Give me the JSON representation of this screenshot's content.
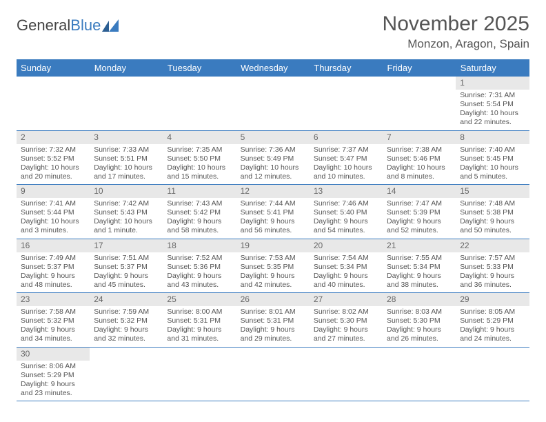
{
  "logo": {
    "text_a": "General",
    "text_b": "Blue"
  },
  "title": "November 2025",
  "location": "Monzon, Aragon, Spain",
  "colors": {
    "header_bg": "#3a7bbf",
    "header_text": "#ffffff",
    "day_bar_bg": "#e8e8e8",
    "border": "#3a7bbf",
    "text": "#555555"
  },
  "weekdays": [
    "Sunday",
    "Monday",
    "Tuesday",
    "Wednesday",
    "Thursday",
    "Friday",
    "Saturday"
  ],
  "weeks": [
    [
      {
        "n": "",
        "sr": "",
        "ss": "",
        "dl": ""
      },
      {
        "n": "",
        "sr": "",
        "ss": "",
        "dl": ""
      },
      {
        "n": "",
        "sr": "",
        "ss": "",
        "dl": ""
      },
      {
        "n": "",
        "sr": "",
        "ss": "",
        "dl": ""
      },
      {
        "n": "",
        "sr": "",
        "ss": "",
        "dl": ""
      },
      {
        "n": "",
        "sr": "",
        "ss": "",
        "dl": ""
      },
      {
        "n": "1",
        "sr": "Sunrise: 7:31 AM",
        "ss": "Sunset: 5:54 PM",
        "dl": "Daylight: 10 hours and 22 minutes."
      }
    ],
    [
      {
        "n": "2",
        "sr": "Sunrise: 7:32 AM",
        "ss": "Sunset: 5:52 PM",
        "dl": "Daylight: 10 hours and 20 minutes."
      },
      {
        "n": "3",
        "sr": "Sunrise: 7:33 AM",
        "ss": "Sunset: 5:51 PM",
        "dl": "Daylight: 10 hours and 17 minutes."
      },
      {
        "n": "4",
        "sr": "Sunrise: 7:35 AM",
        "ss": "Sunset: 5:50 PM",
        "dl": "Daylight: 10 hours and 15 minutes."
      },
      {
        "n": "5",
        "sr": "Sunrise: 7:36 AM",
        "ss": "Sunset: 5:49 PM",
        "dl": "Daylight: 10 hours and 12 minutes."
      },
      {
        "n": "6",
        "sr": "Sunrise: 7:37 AM",
        "ss": "Sunset: 5:47 PM",
        "dl": "Daylight: 10 hours and 10 minutes."
      },
      {
        "n": "7",
        "sr": "Sunrise: 7:38 AM",
        "ss": "Sunset: 5:46 PM",
        "dl": "Daylight: 10 hours and 8 minutes."
      },
      {
        "n": "8",
        "sr": "Sunrise: 7:40 AM",
        "ss": "Sunset: 5:45 PM",
        "dl": "Daylight: 10 hours and 5 minutes."
      }
    ],
    [
      {
        "n": "9",
        "sr": "Sunrise: 7:41 AM",
        "ss": "Sunset: 5:44 PM",
        "dl": "Daylight: 10 hours and 3 minutes."
      },
      {
        "n": "10",
        "sr": "Sunrise: 7:42 AM",
        "ss": "Sunset: 5:43 PM",
        "dl": "Daylight: 10 hours and 1 minute."
      },
      {
        "n": "11",
        "sr": "Sunrise: 7:43 AM",
        "ss": "Sunset: 5:42 PM",
        "dl": "Daylight: 9 hours and 58 minutes."
      },
      {
        "n": "12",
        "sr": "Sunrise: 7:44 AM",
        "ss": "Sunset: 5:41 PM",
        "dl": "Daylight: 9 hours and 56 minutes."
      },
      {
        "n": "13",
        "sr": "Sunrise: 7:46 AM",
        "ss": "Sunset: 5:40 PM",
        "dl": "Daylight: 9 hours and 54 minutes."
      },
      {
        "n": "14",
        "sr": "Sunrise: 7:47 AM",
        "ss": "Sunset: 5:39 PM",
        "dl": "Daylight: 9 hours and 52 minutes."
      },
      {
        "n": "15",
        "sr": "Sunrise: 7:48 AM",
        "ss": "Sunset: 5:38 PM",
        "dl": "Daylight: 9 hours and 50 minutes."
      }
    ],
    [
      {
        "n": "16",
        "sr": "Sunrise: 7:49 AM",
        "ss": "Sunset: 5:37 PM",
        "dl": "Daylight: 9 hours and 48 minutes."
      },
      {
        "n": "17",
        "sr": "Sunrise: 7:51 AM",
        "ss": "Sunset: 5:37 PM",
        "dl": "Daylight: 9 hours and 45 minutes."
      },
      {
        "n": "18",
        "sr": "Sunrise: 7:52 AM",
        "ss": "Sunset: 5:36 PM",
        "dl": "Daylight: 9 hours and 43 minutes."
      },
      {
        "n": "19",
        "sr": "Sunrise: 7:53 AM",
        "ss": "Sunset: 5:35 PM",
        "dl": "Daylight: 9 hours and 42 minutes."
      },
      {
        "n": "20",
        "sr": "Sunrise: 7:54 AM",
        "ss": "Sunset: 5:34 PM",
        "dl": "Daylight: 9 hours and 40 minutes."
      },
      {
        "n": "21",
        "sr": "Sunrise: 7:55 AM",
        "ss": "Sunset: 5:34 PM",
        "dl": "Daylight: 9 hours and 38 minutes."
      },
      {
        "n": "22",
        "sr": "Sunrise: 7:57 AM",
        "ss": "Sunset: 5:33 PM",
        "dl": "Daylight: 9 hours and 36 minutes."
      }
    ],
    [
      {
        "n": "23",
        "sr": "Sunrise: 7:58 AM",
        "ss": "Sunset: 5:32 PM",
        "dl": "Daylight: 9 hours and 34 minutes."
      },
      {
        "n": "24",
        "sr": "Sunrise: 7:59 AM",
        "ss": "Sunset: 5:32 PM",
        "dl": "Daylight: 9 hours and 32 minutes."
      },
      {
        "n": "25",
        "sr": "Sunrise: 8:00 AM",
        "ss": "Sunset: 5:31 PM",
        "dl": "Daylight: 9 hours and 31 minutes."
      },
      {
        "n": "26",
        "sr": "Sunrise: 8:01 AM",
        "ss": "Sunset: 5:31 PM",
        "dl": "Daylight: 9 hours and 29 minutes."
      },
      {
        "n": "27",
        "sr": "Sunrise: 8:02 AM",
        "ss": "Sunset: 5:30 PM",
        "dl": "Daylight: 9 hours and 27 minutes."
      },
      {
        "n": "28",
        "sr": "Sunrise: 8:03 AM",
        "ss": "Sunset: 5:30 PM",
        "dl": "Daylight: 9 hours and 26 minutes."
      },
      {
        "n": "29",
        "sr": "Sunrise: 8:05 AM",
        "ss": "Sunset: 5:29 PM",
        "dl": "Daylight: 9 hours and 24 minutes."
      }
    ],
    [
      {
        "n": "30",
        "sr": "Sunrise: 8:06 AM",
        "ss": "Sunset: 5:29 PM",
        "dl": "Daylight: 9 hours and 23 minutes."
      },
      {
        "n": "",
        "sr": "",
        "ss": "",
        "dl": ""
      },
      {
        "n": "",
        "sr": "",
        "ss": "",
        "dl": ""
      },
      {
        "n": "",
        "sr": "",
        "ss": "",
        "dl": ""
      },
      {
        "n": "",
        "sr": "",
        "ss": "",
        "dl": ""
      },
      {
        "n": "",
        "sr": "",
        "ss": "",
        "dl": ""
      },
      {
        "n": "",
        "sr": "",
        "ss": "",
        "dl": ""
      }
    ]
  ]
}
